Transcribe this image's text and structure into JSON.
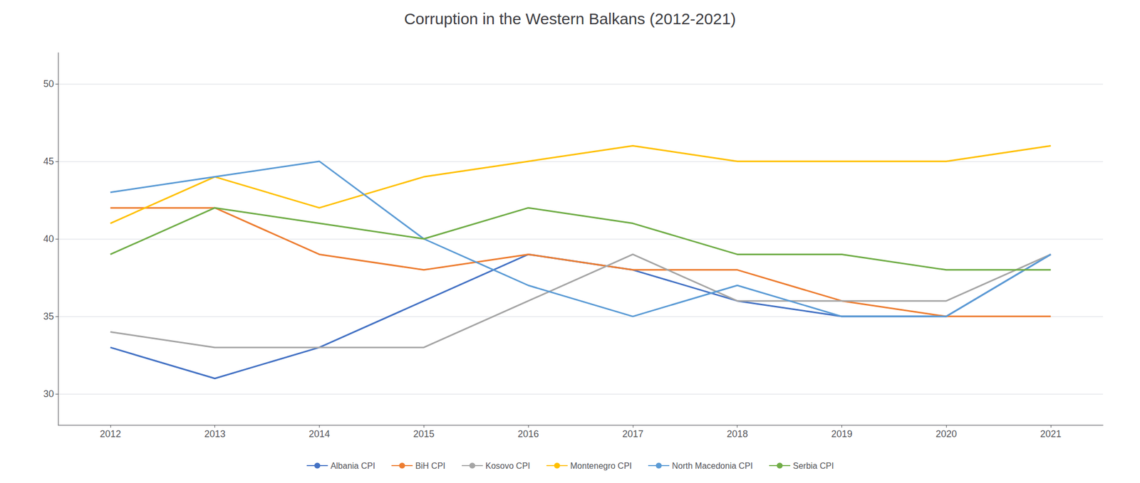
{
  "chart_data": {
    "type": "line",
    "title": "Corruption in the Western Balkans (2012-2021)",
    "x": [
      2012,
      2013,
      2014,
      2015,
      2016,
      2017,
      2018,
      2019,
      2020,
      2021
    ],
    "series": [
      {
        "name": "Albania CPI",
        "color": "#4472C4",
        "values": [
          33,
          31,
          33,
          36,
          39,
          38,
          36,
          35,
          35,
          39
        ]
      },
      {
        "name": "BiH CPI",
        "color": "#ED7D31",
        "values": [
          42,
          42,
          39,
          38,
          39,
          38,
          38,
          36,
          35,
          35
        ]
      },
      {
        "name": "Kosovo CPI",
        "color": "#A5A5A5",
        "values": [
          34,
          33,
          33,
          33,
          36,
          39,
          36,
          36,
          36,
          39
        ]
      },
      {
        "name": "Montenegro CPI",
        "color": "#FFC000",
        "values": [
          41,
          44,
          42,
          44,
          45,
          46,
          45,
          45,
          45,
          46
        ]
      },
      {
        "name": "North Macedonia CPI",
        "color": "#5B9BD5",
        "values": [
          43,
          44,
          45,
          40,
          37,
          35,
          37,
          35,
          35,
          39
        ]
      },
      {
        "name": "Serbia CPI",
        "color": "#70AD47",
        "values": [
          39,
          42,
          41,
          40,
          42,
          41,
          39,
          39,
          38,
          38
        ]
      }
    ],
    "xlim": [
      2011.5,
      2021.5
    ],
    "xticks": [
      2012,
      2013,
      2014,
      2015,
      2016,
      2017,
      2018,
      2019,
      2020,
      2021
    ],
    "ylim": [
      28,
      52
    ],
    "yticks": [
      30,
      35,
      40,
      45,
      50
    ],
    "grid": true,
    "legend": "bottom"
  }
}
